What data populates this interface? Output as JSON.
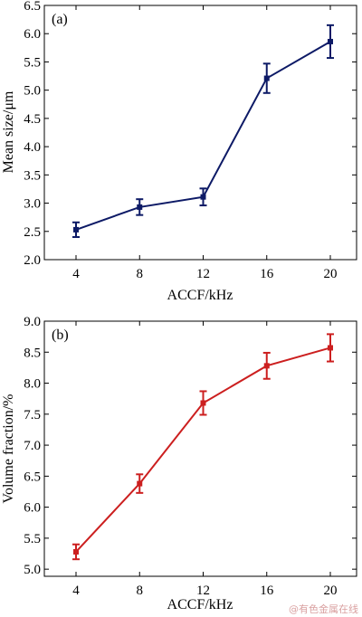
{
  "chart_data": [
    {
      "type": "line",
      "panel_label": "(a)",
      "x": [
        4,
        8,
        12,
        16,
        20
      ],
      "x_tick_labels": [
        "4",
        "8",
        "12",
        "16",
        "20"
      ],
      "xlabel": "ACCF/kHz",
      "ylabel": "Mean size/μm",
      "ylim": [
        2.0,
        6.5
      ],
      "y_tick_labels": [
        "2.0",
        "2.5",
        "3.0",
        "3.5",
        "4.0",
        "4.5",
        "5.0",
        "5.5",
        "6.0",
        "6.5"
      ],
      "series": [
        {
          "values": [
            2.53,
            2.93,
            3.11,
            5.21,
            5.86
          ],
          "errors": [
            0.13,
            0.14,
            0.15,
            0.26,
            0.29
          ],
          "color": "#0d1a66"
        }
      ],
      "grid": false
    },
    {
      "type": "line",
      "panel_label": "(b)",
      "x": [
        4,
        8,
        12,
        16,
        20
      ],
      "x_tick_labels": [
        "4",
        "8",
        "12",
        "16",
        "20"
      ],
      "xlabel": "ACCF/kHz",
      "ylabel": "Volume fraction/%",
      "ylim": [
        4.9,
        9.0
      ],
      "y_tick_labels": [
        "5.0",
        "5.5",
        "6.0",
        "6.5",
        "7.0",
        "7.5",
        "8.0",
        "8.5",
        "9.0"
      ],
      "series": [
        {
          "values": [
            5.28,
            6.38,
            7.68,
            8.28,
            8.57
          ],
          "errors": [
            0.12,
            0.15,
            0.19,
            0.21,
            0.22
          ],
          "color": "#cc1f1f"
        }
      ],
      "grid": false
    }
  ],
  "watermark": "@有色金属在线"
}
